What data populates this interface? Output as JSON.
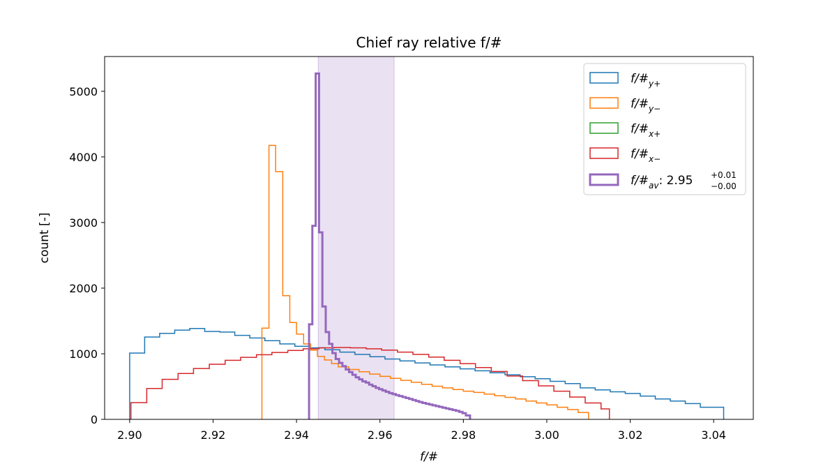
{
  "chart_data": {
    "type": "histogram",
    "title": "Chief ray relative f/#",
    "xlabel": "f/#",
    "ylabel": "count [-]",
    "xlim": [
      2.894,
      3.0495
    ],
    "ylim": [
      0,
      5530
    ],
    "xticks": [
      2.9,
      2.92,
      2.94,
      2.96,
      2.98,
      3.0,
      3.02,
      3.04
    ],
    "xtick_labels": [
      "2.90",
      "2.92",
      "2.94",
      "2.96",
      "2.98",
      "3.00",
      "3.02",
      "3.04"
    ],
    "yticks": [
      0,
      1000,
      2000,
      3000,
      4000,
      5000
    ],
    "ytick_labels": [
      "0",
      "1000",
      "2000",
      "3000",
      "4000",
      "5000"
    ],
    "legend_position": "top-right",
    "grid": false,
    "shaded_band": {
      "x_start": 2.9452,
      "x_end": 2.9634,
      "color": "#9467bd"
    },
    "series": [
      {
        "name": "f/#",
        "name_sub": "y+",
        "color": "#1f77b4",
        "stroke_width": 1.5,
        "edges": [
          2.9,
          2.9036,
          2.9072,
          2.9108,
          2.9144,
          2.918,
          2.9216,
          2.9252,
          2.9288,
          2.9324,
          2.936,
          2.9396,
          2.9432,
          2.9468,
          2.9504,
          2.954,
          2.9576,
          2.9612,
          2.9648,
          2.9684,
          2.972,
          2.9756,
          2.9792,
          2.9828,
          2.9864,
          2.99,
          2.9936,
          2.9972,
          3.0008,
          3.0044,
          3.008,
          3.0116,
          3.0152,
          3.0188,
          3.0224,
          3.026,
          3.0296,
          3.0332,
          3.0368,
          3.0424
        ],
        "counts": [
          1010,
          1255,
          1310,
          1360,
          1385,
          1340,
          1330,
          1280,
          1240,
          1200,
          1150,
          1115,
          1090,
          1060,
          1025,
          990,
          955,
          920,
          890,
          860,
          830,
          800,
          770,
          740,
          710,
          680,
          650,
          620,
          580,
          545,
          480,
          450,
          420,
          395,
          355,
          310,
          280,
          240,
          185
        ]
      },
      {
        "name": "f/#",
        "name_sub": "y−",
        "color": "#ff7f0e",
        "stroke_width": 1.5,
        "edges": [
          2.9317,
          2.9334,
          2.935,
          2.9367,
          2.9384,
          2.94,
          2.9417,
          2.9434,
          2.945,
          2.9467,
          2.9484,
          2.95,
          2.9525,
          2.955,
          2.9575,
          2.96,
          2.9625,
          2.965,
          2.9675,
          2.97,
          2.9725,
          2.975,
          2.9775,
          2.98,
          2.9825,
          2.985,
          2.9875,
          2.99,
          2.9925,
          2.995,
          2.9975,
          3.0,
          3.0025,
          3.005,
          3.0075,
          3.01
        ],
        "counts": [
          1390,
          4175,
          3775,
          1885,
          1475,
          1300,
          1150,
          1055,
          960,
          905,
          850,
          800,
          760,
          725,
          690,
          655,
          625,
          595,
          565,
          535,
          505,
          480,
          455,
          430,
          410,
          385,
          360,
          335,
          310,
          280,
          250,
          220,
          185,
          150,
          105
        ]
      },
      {
        "name": "f/#",
        "name_sub": "x+",
        "color": "#2ca02c",
        "stroke_width": 1.5,
        "edges": [],
        "counts": []
      },
      {
        "name": "f/#",
        "name_sub": "x−",
        "color": "#d62728",
        "stroke_width": 1.5,
        "edges": [
          2.9003,
          2.9041,
          2.9078,
          2.9116,
          2.9153,
          2.9191,
          2.9229,
          2.9266,
          2.9304,
          2.9341,
          2.9379,
          2.9416,
          2.9454,
          2.9491,
          2.9529,
          2.9567,
          2.9604,
          2.9642,
          2.9679,
          2.9717,
          2.9754,
          2.9792,
          2.9829,
          2.9867,
          2.9905,
          2.9942,
          2.998,
          3.0017,
          3.0055,
          3.0092,
          3.013,
          3.015
        ],
        "counts": [
          255,
          470,
          610,
          700,
          775,
          840,
          900,
          945,
          985,
          1020,
          1050,
          1075,
          1090,
          1095,
          1090,
          1075,
          1055,
          1025,
          990,
          950,
          900,
          850,
          790,
          730,
          660,
          590,
          510,
          430,
          340,
          250,
          160
        ]
      },
      {
        "name": "f/#",
        "name_sub": "av",
        "label_value": ": 2.95",
        "label_sup": "+0.01",
        "label_sub": "−0.00",
        "color": "#9467bd",
        "stroke_width": 3,
        "edges": [
          2.943,
          2.9438,
          2.9446,
          2.9454,
          2.9462,
          2.947,
          2.9478,
          2.9486,
          2.9494,
          2.9502,
          2.951,
          2.9518,
          2.9526,
          2.9534,
          2.9542,
          2.955,
          2.9558,
          2.9566,
          2.9574,
          2.9582,
          2.959,
          2.9598,
          2.9606,
          2.9614,
          2.9622,
          2.963,
          2.9638,
          2.9646,
          2.9654,
          2.9662,
          2.967,
          2.9678,
          2.9686,
          2.9694,
          2.9702,
          2.971,
          2.9718,
          2.9726,
          2.9734,
          2.9742,
          2.975,
          2.9758,
          2.9766,
          2.9774,
          2.9782,
          2.979,
          2.9798,
          2.9806,
          2.9816
        ],
        "counts": [
          1450,
          2950,
          5270,
          2850,
          1720,
          1330,
          1150,
          1010,
          920,
          860,
          810,
          760,
          720,
          680,
          640,
          610,
          580,
          560,
          530,
          505,
          480,
          460,
          440,
          420,
          400,
          385,
          370,
          355,
          340,
          325,
          310,
          295,
          280,
          265,
          250,
          238,
          226,
          214,
          202,
          190,
          178,
          166,
          154,
          142,
          130,
          115,
          95,
          60
        ]
      }
    ]
  }
}
